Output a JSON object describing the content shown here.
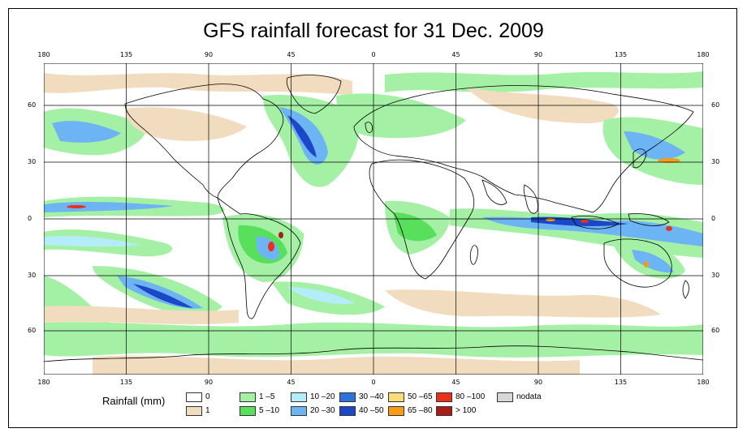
{
  "title": "GFS rainfall forecast for 31 Dec. 2009",
  "axes": {
    "top_labels": [
      "180",
      "135",
      "90",
      "45",
      "0",
      "45",
      "90",
      "135",
      "180"
    ],
    "bottom_labels": [
      "180",
      "135",
      "90",
      "45",
      "0",
      "45",
      "90",
      "135",
      "180"
    ],
    "left_labels": [
      "60",
      "30",
      "0",
      "30",
      "60"
    ],
    "right_labels": [
      "60",
      "30",
      "0",
      "30",
      "60"
    ]
  },
  "legend": {
    "title": "Rainfall (mm)",
    "items": [
      {
        "label": "0",
        "color": "#ffffff"
      },
      {
        "label": "1",
        "color": "#f2dcc0"
      },
      {
        "label": "1 –5",
        "color": "#a4f0a4"
      },
      {
        "label": "5 –10",
        "color": "#58e05c"
      },
      {
        "label": "10 –20",
        "color": "#b4ecf8"
      },
      {
        "label": "20 –30",
        "color": "#6cb4f4"
      },
      {
        "label": "30 –40",
        "color": "#2c74d8"
      },
      {
        "label": "40 –50",
        "color": "#1c48c8"
      },
      {
        "label": "50 –65",
        "color": "#fcdc78"
      },
      {
        "label": "65 –80",
        "color": "#f89c18"
      },
      {
        "label": "80 –100",
        "color": "#e8301c"
      },
      {
        "label": "> 100",
        "color": "#a81c1c"
      },
      {
        "label": "nodata",
        "color": "#d8d8d8"
      }
    ]
  },
  "map_colors": {
    "ocean": "#ffffff",
    "coast": "#000000",
    "grid": "#000000"
  }
}
